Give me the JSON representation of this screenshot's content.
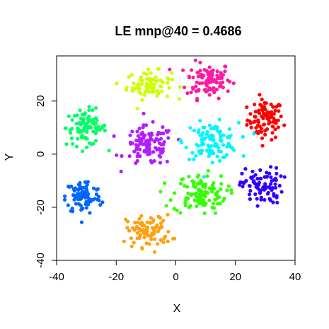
{
  "chart_data": {
    "type": "scatter",
    "title": "LE mnp@40 = 0.4686",
    "xlabel": "X",
    "ylabel": "Y",
    "xlim": [
      -40,
      40
    ],
    "ylim": [
      -40,
      37
    ],
    "xticks": [
      -40,
      -20,
      0,
      20,
      40
    ],
    "yticks": [
      -40,
      -20,
      0,
      20
    ],
    "grid": false,
    "legend": "none",
    "series": [
      {
        "color": "#ff0000",
        "center": [
          30,
          13
        ],
        "spread": [
          4.0,
          5.0
        ],
        "count": 90
      },
      {
        "color": "#ff1aa0",
        "center": [
          11,
          28
        ],
        "spread": [
          5.0,
          4.5
        ],
        "count": 100
      },
      {
        "color": "#ccff00",
        "center": [
          -9,
          26
        ],
        "spread": [
          5.0,
          3.5
        ],
        "count": 80
      },
      {
        "color": "#00ff66",
        "center": [
          -30,
          10
        ],
        "spread": [
          4.5,
          4.5
        ],
        "count": 90
      },
      {
        "color": "#b21eff",
        "center": [
          -9,
          3
        ],
        "spread": [
          5.5,
          5.0
        ],
        "count": 110
      },
      {
        "color": "#00f5ff",
        "center": [
          12,
          5
        ],
        "spread": [
          6.0,
          4.5
        ],
        "count": 110
      },
      {
        "color": "#0066ff",
        "center": [
          -31,
          -16
        ],
        "spread": [
          4.0,
          4.5
        ],
        "count": 90
      },
      {
        "color": "#33ff00",
        "center": [
          8,
          -15
        ],
        "spread": [
          6.0,
          5.0
        ],
        "count": 110
      },
      {
        "color": "#3300ff",
        "center": [
          29,
          -12
        ],
        "spread": [
          4.5,
          4.5
        ],
        "count": 90
      },
      {
        "color": "#ffa010",
        "center": [
          -9,
          -29
        ],
        "spread": [
          5.0,
          4.0
        ],
        "count": 90
      }
    ]
  }
}
